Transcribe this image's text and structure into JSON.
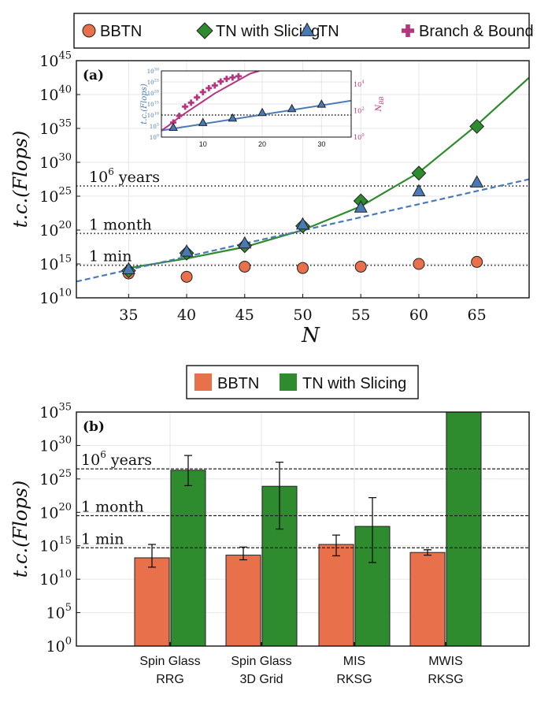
{
  "chart_data": [
    {
      "panel_label": "(a)",
      "type": "scatter",
      "xlabel": "N",
      "ylabel": "t.c.(Flops)",
      "xlim": [
        30.5,
        69.5
      ],
      "ylim_log10": [
        10,
        45
      ],
      "xticks": [
        35,
        40,
        45,
        50,
        55,
        60,
        65
      ],
      "yticks_log10": [
        10,
        15,
        20,
        25,
        30,
        35,
        40,
        45
      ],
      "grid": true,
      "legend_position": "top-outside",
      "series": [
        {
          "name": "BBTN",
          "marker": "circle",
          "color": "#e8704a",
          "x": [
            35,
            40,
            45,
            50,
            55,
            60,
            65
          ],
          "log10_y": [
            13.6,
            13.1,
            14.6,
            14.4,
            14.6,
            15.0,
            15.3
          ]
        },
        {
          "name": "TN with Slicing",
          "marker": "diamond",
          "color": "#2e8b2e",
          "x": [
            35,
            40,
            45,
            50,
            55,
            60,
            65
          ],
          "log10_y": [
            14.0,
            16.6,
            17.7,
            20.6,
            24.3,
            28.4,
            35.3
          ]
        },
        {
          "name": "TN",
          "marker": "triangle",
          "color": "#4a7ab5",
          "x": [
            35,
            40,
            45,
            50,
            55,
            60,
            65
          ],
          "log10_y": [
            14.2,
            16.8,
            18.0,
            20.8,
            23.3,
            25.7,
            27.0
          ]
        },
        {
          "name": "Branch & Bound",
          "marker": "plus",
          "color": "#b5357f"
        }
      ],
      "fit_lines": [
        {
          "series": "TN with Slicing",
          "style": "solid",
          "color": "#2e8b2e",
          "x": [
            35,
            40,
            45,
            50,
            55,
            60,
            65,
            69.5
          ],
          "log10_y": [
            14.4,
            15.8,
            17.5,
            20.0,
            23.5,
            28.5,
            35.5,
            42.5
          ]
        },
        {
          "series": "TN",
          "style": "dashed",
          "color": "#4a7ab5",
          "x": [
            30.5,
            69.5
          ],
          "log10_y": [
            12.4,
            27.5
          ]
        }
      ],
      "reference_lines": [
        {
          "label": "10⁶ years",
          "log10_y": 26.5
        },
        {
          "label": "1 month",
          "log10_y": 19.5
        },
        {
          "label": "1 min",
          "log10_y": 14.8
        }
      ],
      "inset": {
        "xlim": [
          3,
          35
        ],
        "xticks": [
          10,
          20,
          30
        ],
        "ylabel_left": "t.c.(Flops)",
        "ylabel_right": "N_BB",
        "left_ylim_log10": [
          0,
          30
        ],
        "left_yticks_log10": [
          0,
          5,
          10,
          15,
          20,
          25,
          30
        ],
        "right_ylim_log10": [
          0,
          5
        ],
        "right_yticks_log10": [
          0,
          2,
          4
        ],
        "reference_line_log10_left": 10,
        "tn_points": {
          "x": [
            5,
            10,
            15,
            20,
            25,
            30
          ],
          "log10_y": [
            4.3,
            6.5,
            8.5,
            11.0,
            12.8,
            14.8
          ]
        },
        "tn_fit": {
          "x": [
            3,
            35
          ],
          "log10_y": [
            3.0,
            16.5
          ]
        },
        "bb_points": {
          "x": [
            5,
            6,
            7,
            8,
            9,
            10,
            11,
            12,
            13,
            14,
            15,
            16
          ],
          "log10_y": [
            1.1,
            1.6,
            2.3,
            2.6,
            3.0,
            3.4,
            3.7,
            3.9,
            4.2,
            4.4,
            4.5,
            4.6
          ]
        },
        "bb_fit": {
          "x": [
            3,
            4,
            6,
            8,
            10,
            12,
            14,
            16,
            18,
            19.5
          ],
          "log10_y": [
            0.5,
            0.8,
            1.5,
            2.1,
            2.7,
            3.3,
            3.8,
            4.3,
            4.8,
            5.0
          ]
        }
      }
    },
    {
      "panel_label": "(b)",
      "type": "bar",
      "ylabel": "t.c.(Flops)",
      "ylim_log10": [
        0,
        35
      ],
      "yticks_log10": [
        0,
        5,
        10,
        15,
        20,
        25,
        30,
        35
      ],
      "categories": [
        [
          "Spin Glass",
          "RRG"
        ],
        [
          "Spin Glass",
          "3D Grid"
        ],
        [
          "MIS",
          "RKSG"
        ],
        [
          "MWIS",
          "RKSG"
        ]
      ],
      "series": [
        {
          "name": "BBTN",
          "color": "#e8704a",
          "log10_values": [
            13.2,
            13.6,
            15.2,
            14.0
          ],
          "log10_err_low": [
            11.8,
            12.9,
            13.5,
            13.6
          ],
          "log10_err_high": [
            15.2,
            14.8,
            16.6,
            14.4
          ]
        },
        {
          "name": "TN with Slicing",
          "color": "#2e8b2e",
          "log10_values": [
            26.3,
            23.9,
            17.9,
            35
          ],
          "log10_err_low": [
            24.0,
            17.5,
            12.5,
            null
          ],
          "log10_err_high": [
            28.5,
            27.5,
            22.2,
            null
          ]
        }
      ],
      "reference_lines": [
        {
          "label": "10⁶ years",
          "log10_y": 26.5
        },
        {
          "label": "1 month",
          "log10_y": 19.5
        },
        {
          "label": "1 min",
          "log10_y": 14.7
        }
      ],
      "legend_position": "top-outside",
      "grid": true
    }
  ]
}
